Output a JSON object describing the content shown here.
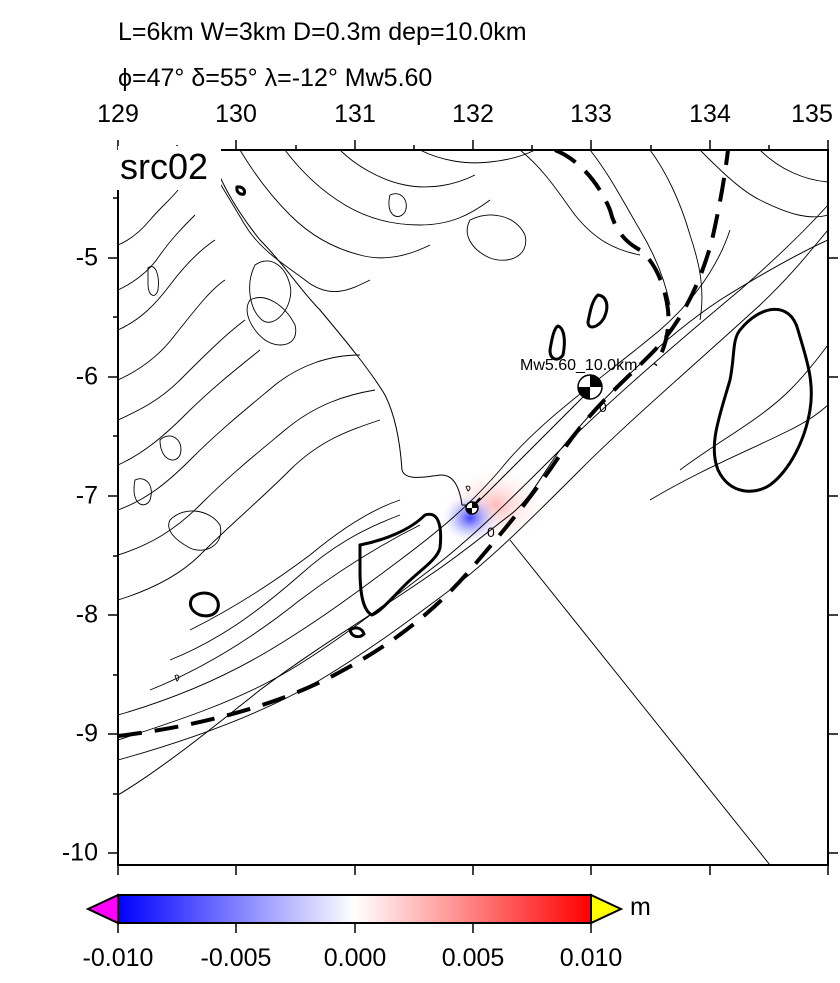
{
  "title": {
    "line1": "L=6km W=3km D=0.3m dep=10.0km",
    "line2": "ϕ=47° δ=55° λ=-12° Mw5.60"
  },
  "panel_label": "src02",
  "axes": {
    "lon_ticks": [
      "129",
      "130",
      "131",
      "132",
      "133",
      "134",
      "135"
    ],
    "lat_ticks": [
      "-5",
      "-6",
      "-7",
      "-8",
      "-9",
      "-10"
    ],
    "lon_range": [
      129,
      135
    ],
    "lat_range": [
      -10.1,
      -4.2
    ]
  },
  "event": {
    "label": "Mw5.60_10.0km",
    "lon": 133.0,
    "lat": -6.1,
    "source_lon": 132.0,
    "source_lat": -7.1
  },
  "contour_label": "0",
  "colorbar": {
    "ticks": [
      "-0.010",
      "-0.005",
      "0.000",
      "0.005",
      "0.010"
    ],
    "unit": "m",
    "min": -0.01,
    "max": 0.01,
    "colors": {
      "low": "#0000ff",
      "mid": "#ffffff",
      "high": "#ff0000",
      "under": "#ff00ff",
      "over": "#ffff00"
    }
  }
}
